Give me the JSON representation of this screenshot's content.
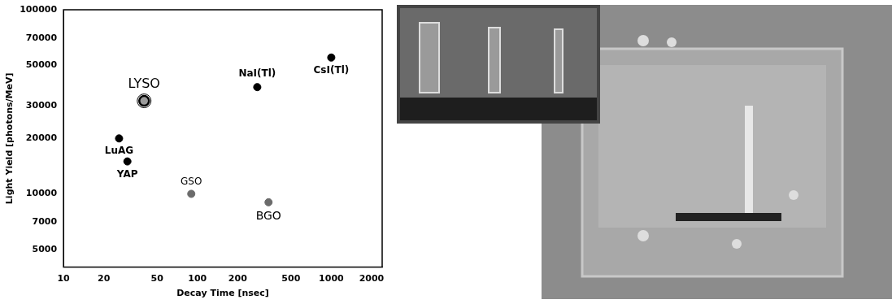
{
  "chart_data": {
    "type": "scatter",
    "xlabel": "Decay Time [nsec]",
    "ylabel": "Light Yield [photons/MeV]",
    "log": true,
    "grid": false,
    "xlim": [
      10,
      2400
    ],
    "ylim": [
      4000,
      100000
    ],
    "xticks": [
      10,
      20,
      50,
      100,
      200,
      500,
      1000,
      2000
    ],
    "yticks": [
      5000,
      7000,
      10000,
      20000,
      30000,
      50000,
      70000,
      100000
    ],
    "series": [
      {
        "name": "LYSO",
        "color": "#000000",
        "marker": "ring",
        "x": [
          40
        ],
        "y": [
          32000
        ]
      },
      {
        "name": "LuAG",
        "color": "#000000",
        "marker": "circle",
        "x": [
          26
        ],
        "y": [
          20000
        ]
      },
      {
        "name": "YAP",
        "color": "#000000",
        "marker": "circle",
        "x": [
          30
        ],
        "y": [
          15000
        ]
      },
      {
        "name": "GSO",
        "color": "#6b6b6b",
        "marker": "circle",
        "x": [
          90
        ],
        "y": [
          10000
        ]
      },
      {
        "name": "BGO",
        "color": "#6b6b6b",
        "marker": "circle",
        "x": [
          340
        ],
        "y": [
          9000
        ]
      },
      {
        "name": "NaI(Tl)",
        "color": "#000000",
        "marker": "circle",
        "x": [
          280
        ],
        "y": [
          38000
        ]
      },
      {
        "name": "CsI(Tl)",
        "color": "#000000",
        "marker": "circle",
        "x": [
          1000
        ],
        "y": [
          55000
        ]
      }
    ]
  }
}
